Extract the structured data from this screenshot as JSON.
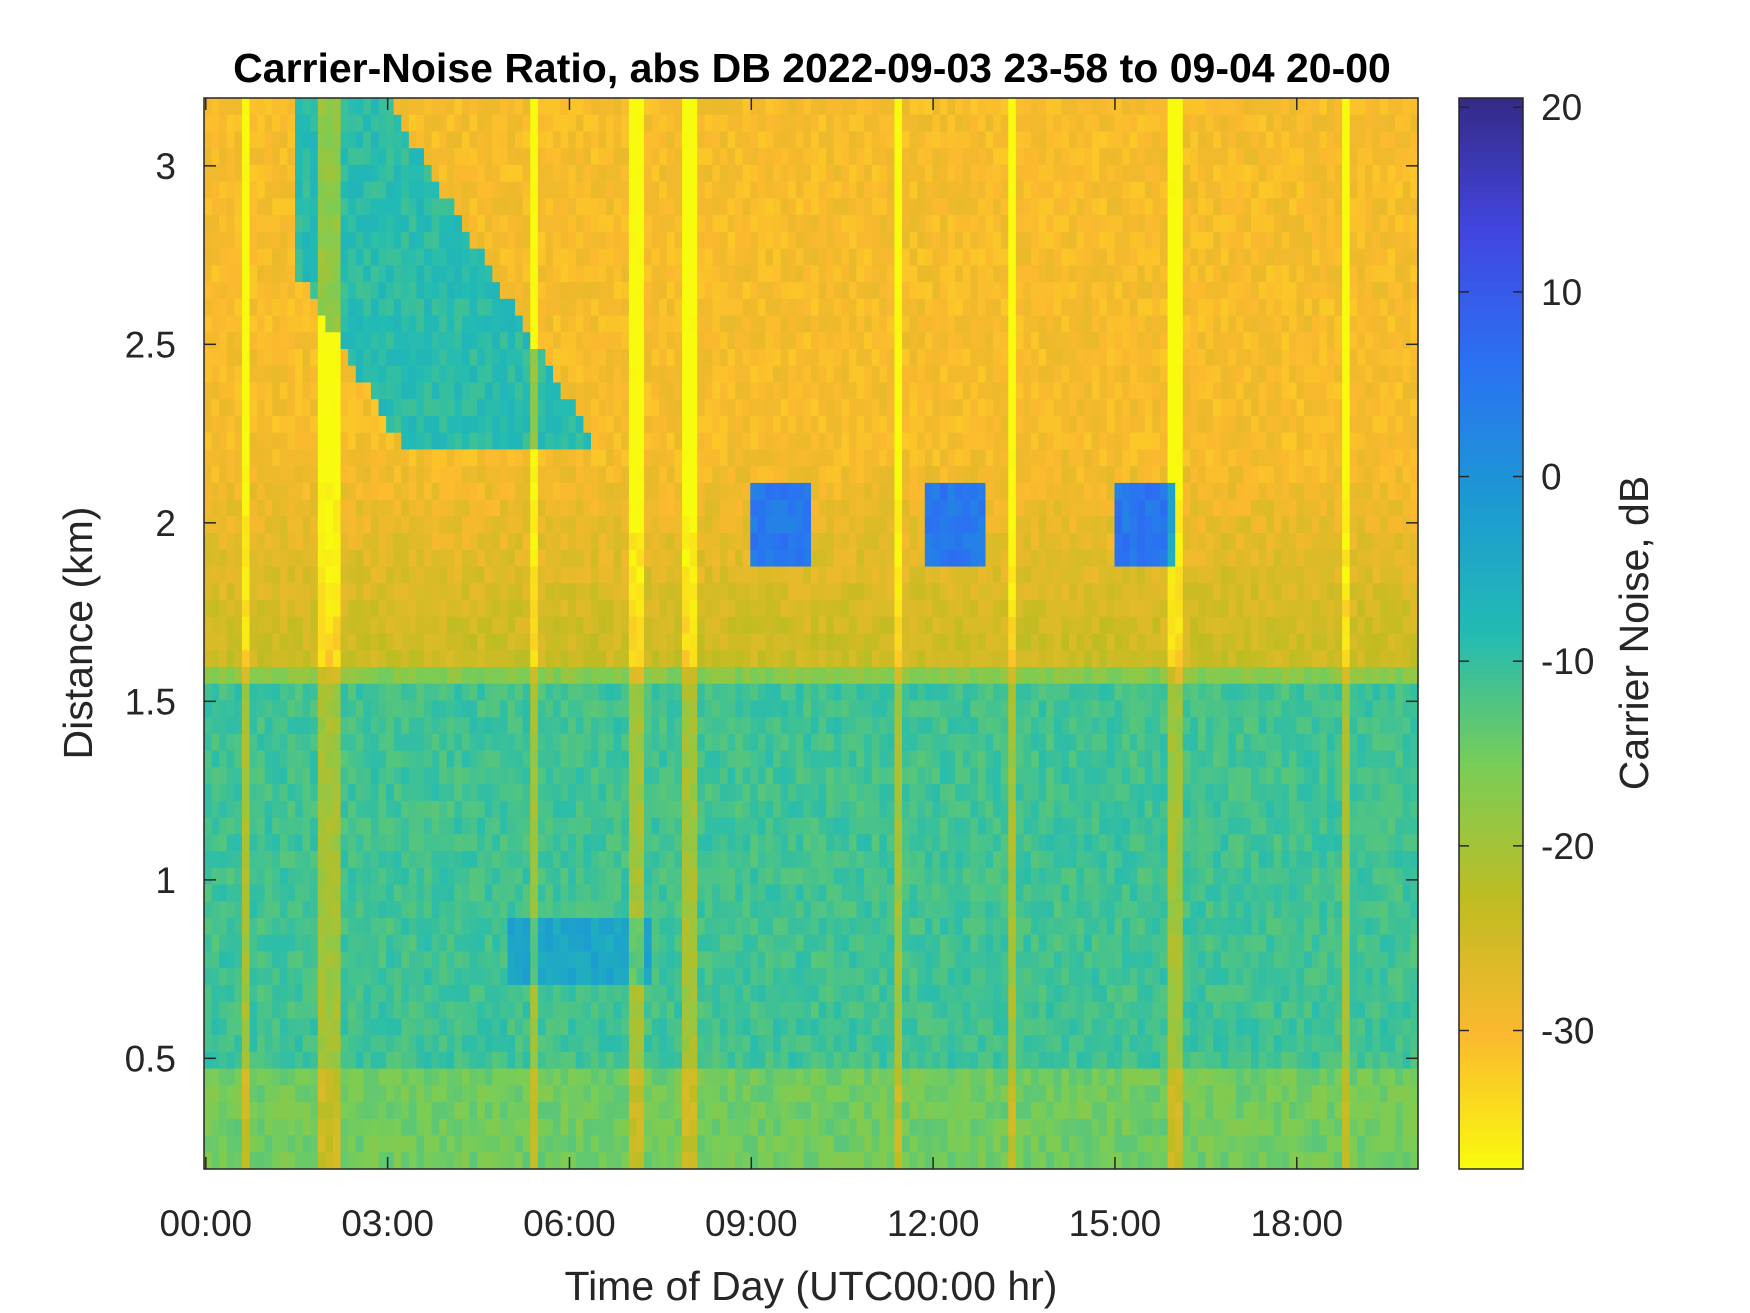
{
  "chart_data": {
    "type": "heatmap",
    "title": "Carrier-Noise Ratio, abs DB 2022-09-03 23-58 to 09-04 20-00",
    "xlabel": "Time of Day (UTC00:00 hr)",
    "ylabel": "Distance (km)",
    "colorbar_label": "Carrier Noise, dB",
    "x_ticks": [
      {
        "value": 0,
        "label": "00:00"
      },
      {
        "value": 3,
        "label": "03:00"
      },
      {
        "value": 6,
        "label": "06:00"
      },
      {
        "value": 9,
        "label": "09:00"
      },
      {
        "value": 12,
        "label": "12:00"
      },
      {
        "value": 15,
        "label": "15:00"
      },
      {
        "value": 18,
        "label": "18:00"
      }
    ],
    "y_ticks": [
      {
        "value": 0.5,
        "label": "0.5"
      },
      {
        "value": 1,
        "label": "1"
      },
      {
        "value": 1.5,
        "label": "1.5"
      },
      {
        "value": 2,
        "label": "2"
      },
      {
        "value": 2.5,
        "label": "2.5"
      },
      {
        "value": 3,
        "label": "3"
      }
    ],
    "colorbar_ticks": [
      {
        "value": 20,
        "label": "20"
      },
      {
        "value": 10,
        "label": "10"
      },
      {
        "value": 0,
        "label": "0"
      },
      {
        "value": -10,
        "label": "-10"
      },
      {
        "value": -20,
        "label": "-20"
      },
      {
        "value": -30,
        "label": "-30"
      }
    ],
    "xlim": [
      -0.03,
      20.0
    ],
    "ylim": [
      0.19,
      3.19
    ],
    "clim": [
      -37.5,
      20.5
    ],
    "colormap": "parula",
    "colormap_stops": [
      "#f9fb0e",
      "#fbb92f",
      "#c0bc22",
      "#7acd56",
      "#23bbb3",
      "#1c99d3",
      "#2a72f2",
      "#4246e0",
      "#352a87"
    ],
    "grid": false,
    "colorbar_position": "right",
    "field_summary": {
      "upper_layer_above_km": 2.2,
      "upper_layer_db": -30,
      "middle_layer_km": [
        1.6,
        2.2
      ],
      "middle_layer_db": -24,
      "lower_layer_below_km": 1.55,
      "lower_layer_db": -10,
      "bright_vertical_streak_hours": [
        0.65,
        1.9,
        2.1,
        5.45,
        7.1,
        8.0,
        11.4,
        13.3,
        16.0,
        18.8
      ]
    }
  }
}
